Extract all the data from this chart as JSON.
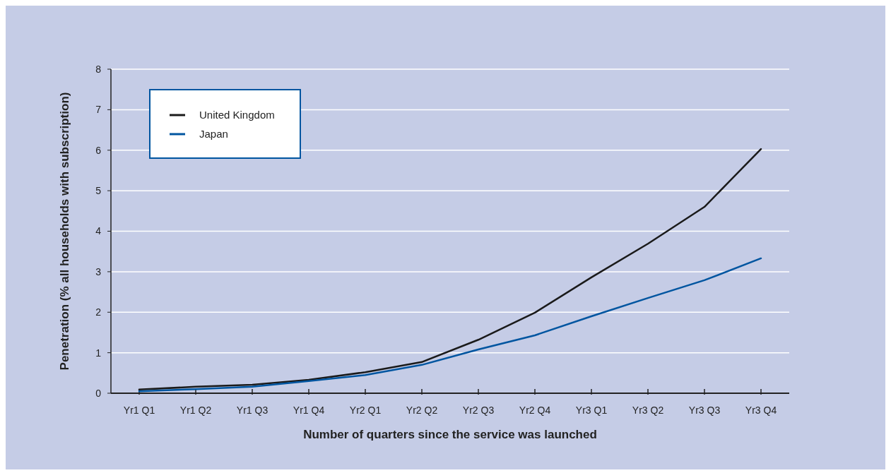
{
  "chart_data": {
    "type": "line",
    "xlabel": "Number of quarters since the service was launched",
    "ylabel": "Penetration (% all households with subscription)",
    "categories": [
      "Yr1 Q1",
      "Yr1 Q2",
      "Yr1 Q3",
      "Yr1 Q4",
      "Yr2 Q1",
      "Yr2 Q2",
      "Yr2 Q3",
      "Yr2 Q4",
      "Yr3 Q1",
      "Yr3 Q2",
      "Yr3 Q3",
      "Yr3 Q4"
    ],
    "series": [
      {
        "name": "United Kingdom",
        "color": "#1a1a1a",
        "values": [
          0.09,
          0.16,
          0.21,
          0.33,
          0.52,
          0.77,
          1.32,
          1.99,
          2.86,
          3.69,
          4.6,
          6.03
        ]
      },
      {
        "name": "Japan",
        "color": "#0055a0",
        "values": [
          0.05,
          0.1,
          0.16,
          0.3,
          0.45,
          0.7,
          1.08,
          1.43,
          1.9,
          2.35,
          2.79,
          3.33
        ]
      }
    ],
    "ylim": [
      0,
      8
    ],
    "yticks": [
      0,
      1,
      2,
      3,
      4,
      5,
      6,
      7,
      8
    ],
    "grid": "y",
    "legend": "top left",
    "marker": "none",
    "line_style": "solid"
  }
}
